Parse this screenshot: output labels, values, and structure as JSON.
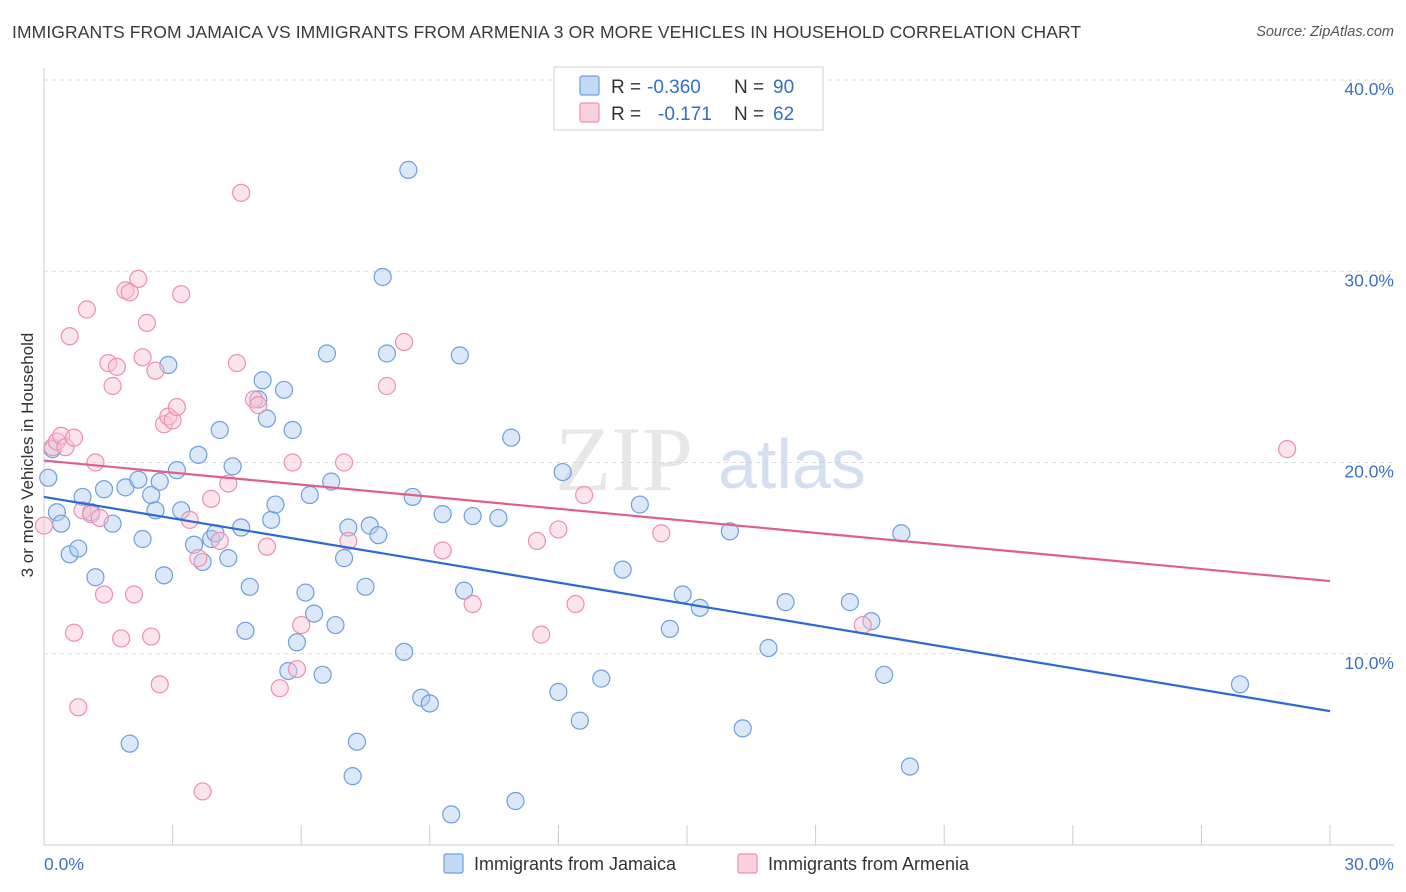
{
  "title": "IMMIGRANTS FROM JAMAICA VS IMMIGRANTS FROM ARMENIA 3 OR MORE VEHICLES IN HOUSEHOLD CORRELATION CHART",
  "source": "Source: ZipAtlas.com",
  "watermark": {
    "zip": "ZIP",
    "atlas": "atlas"
  },
  "chart_data": {
    "type": "scatter",
    "ylabel": "3 or more Vehicles in Household",
    "xlim": [
      0,
      30
    ],
    "ylim": [
      0,
      40
    ],
    "x_tick_labels": [
      {
        "value": 0,
        "label": "0.0%"
      },
      {
        "value": 30,
        "label": "30.0%"
      }
    ],
    "y_tick_labels": [
      {
        "value": 10,
        "label": "10.0%"
      },
      {
        "value": 20,
        "label": "20.0%"
      },
      {
        "value": 30,
        "label": "30.0%"
      },
      {
        "value": 40,
        "label": "40.0%"
      }
    ],
    "grid": "horizontal dashed",
    "legend_top": [
      {
        "r_label": "R =",
        "r_value": "-0.360",
        "n_label": "N =",
        "n_value": "90",
        "color": "#6f9fdc"
      },
      {
        "r_label": "R =",
        "r_value": "-0.171",
        "n_label": "N =",
        "n_value": "62",
        "color": "#ee8faf"
      }
    ],
    "series": [
      {
        "name": "Immigrants from Jamaica",
        "color": "#6f9fdc",
        "fill": "#aecbf0",
        "trend": {
          "x": [
            0,
            30
          ],
          "y": [
            18.2,
            7.0
          ],
          "color": "#2a6bd3"
        },
        "points": [
          [
            0.1,
            19.2
          ],
          [
            0.3,
            17.4
          ],
          [
            0.4,
            16.8
          ],
          [
            0.6,
            15.2
          ],
          [
            0.8,
            15.5
          ],
          [
            0.9,
            18.2
          ],
          [
            1.2,
            14.0
          ],
          [
            1.4,
            18.6
          ],
          [
            1.6,
            16.8
          ],
          [
            1.9,
            18.7
          ],
          [
            2.0,
            5.3
          ],
          [
            2.2,
            19.1
          ],
          [
            2.3,
            16.0
          ],
          [
            2.5,
            18.3
          ],
          [
            2.6,
            17.5
          ],
          [
            2.7,
            19.0
          ],
          [
            2.8,
            14.1
          ],
          [
            2.9,
            25.1
          ],
          [
            3.1,
            19.6
          ],
          [
            3.2,
            17.5
          ],
          [
            3.6,
            20.4
          ],
          [
            3.5,
            15.7
          ],
          [
            3.7,
            14.8
          ],
          [
            3.9,
            16.0
          ],
          [
            4.0,
            16.3
          ],
          [
            4.1,
            21.7
          ],
          [
            4.3,
            15.0
          ],
          [
            4.4,
            19.8
          ],
          [
            4.6,
            16.6
          ],
          [
            4.7,
            11.2
          ],
          [
            4.8,
            13.5
          ],
          [
            5.0,
            23.3
          ],
          [
            5.1,
            24.3
          ],
          [
            5.3,
            17.0
          ],
          [
            5.4,
            17.8
          ],
          [
            5.6,
            23.8
          ],
          [
            5.7,
            9.1
          ],
          [
            5.8,
            21.7
          ],
          [
            5.9,
            10.6
          ],
          [
            6.1,
            13.2
          ],
          [
            6.2,
            18.3
          ],
          [
            6.3,
            12.1
          ],
          [
            6.5,
            8.9
          ],
          [
            6.6,
            25.7
          ],
          [
            6.7,
            19.0
          ],
          [
            6.8,
            11.5
          ],
          [
            7.0,
            15.0
          ],
          [
            7.1,
            16.6
          ],
          [
            7.2,
            3.6
          ],
          [
            7.3,
            5.4
          ],
          [
            7.5,
            13.5
          ],
          [
            7.6,
            16.7
          ],
          [
            7.8,
            16.2
          ],
          [
            7.9,
            29.7
          ],
          [
            8.0,
            25.7
          ],
          [
            8.4,
            10.1
          ],
          [
            8.5,
            35.3
          ],
          [
            8.6,
            18.2
          ],
          [
            8.8,
            7.7
          ],
          [
            9.0,
            7.4
          ],
          [
            9.3,
            17.3
          ],
          [
            9.5,
            1.6
          ],
          [
            9.7,
            25.6
          ],
          [
            9.8,
            13.3
          ],
          [
            10.0,
            17.2
          ],
          [
            10.6,
            17.1
          ],
          [
            10.9,
            21.3
          ],
          [
            11.0,
            2.3
          ],
          [
            12.0,
            8.0
          ],
          [
            12.1,
            19.5
          ],
          [
            12.5,
            6.5
          ],
          [
            13.0,
            8.7
          ],
          [
            13.5,
            14.4
          ],
          [
            13.9,
            17.8
          ],
          [
            14.6,
            11.3
          ],
          [
            14.9,
            13.1
          ],
          [
            15.3,
            12.4
          ],
          [
            16.0,
            16.4
          ],
          [
            16.3,
            6.1
          ],
          [
            16.9,
            10.3
          ],
          [
            17.3,
            12.7
          ],
          [
            18.8,
            12.7
          ],
          [
            19.3,
            11.7
          ],
          [
            19.6,
            8.9
          ],
          [
            20.0,
            16.3
          ],
          [
            20.2,
            4.1
          ],
          [
            27.9,
            8.4
          ],
          [
            0.2,
            20.7
          ],
          [
            1.1,
            17.4
          ],
          [
            5.2,
            22.3
          ]
        ]
      },
      {
        "name": "Immigrants from Armenia",
        "color": "#ee8faf",
        "fill": "#f8c3d4",
        "trend": {
          "x": [
            0,
            30
          ],
          "y": [
            20.1,
            13.8
          ],
          "color": "#e05e8d"
        },
        "points": [
          [
            0.0,
            16.7
          ],
          [
            0.2,
            20.8
          ],
          [
            0.3,
            21.1
          ],
          [
            0.4,
            21.4
          ],
          [
            0.5,
            20.8
          ],
          [
            0.6,
            26.6
          ],
          [
            0.7,
            21.3
          ],
          [
            0.7,
            11.1
          ],
          [
            0.8,
            7.2
          ],
          [
            0.9,
            17.5
          ],
          [
            1.0,
            28.0
          ],
          [
            1.1,
            17.3
          ],
          [
            1.2,
            20.0
          ],
          [
            1.3,
            17.1
          ],
          [
            1.4,
            13.1
          ],
          [
            1.5,
            25.2
          ],
          [
            1.6,
            24.0
          ],
          [
            1.7,
            25.0
          ],
          [
            1.8,
            10.8
          ],
          [
            1.9,
            29.0
          ],
          [
            2.0,
            28.9
          ],
          [
            2.1,
            13.1
          ],
          [
            2.2,
            29.6
          ],
          [
            2.3,
            25.5
          ],
          [
            2.4,
            27.3
          ],
          [
            2.5,
            10.9
          ],
          [
            2.6,
            24.8
          ],
          [
            2.7,
            8.4
          ],
          [
            2.8,
            22.0
          ],
          [
            2.9,
            22.4
          ],
          [
            3.0,
            22.2
          ],
          [
            3.1,
            22.9
          ],
          [
            3.2,
            28.8
          ],
          [
            3.4,
            17.0
          ],
          [
            3.6,
            15.0
          ],
          [
            3.7,
            2.8
          ],
          [
            3.9,
            18.1
          ],
          [
            4.1,
            15.9
          ],
          [
            4.3,
            18.9
          ],
          [
            4.5,
            25.2
          ],
          [
            4.6,
            34.1
          ],
          [
            4.9,
            23.3
          ],
          [
            5.0,
            23.0
          ],
          [
            5.2,
            15.6
          ],
          [
            5.5,
            8.2
          ],
          [
            5.8,
            20.0
          ],
          [
            5.9,
            9.2
          ],
          [
            6.0,
            11.5
          ],
          [
            7.0,
            20.0
          ],
          [
            7.1,
            15.9
          ],
          [
            8.0,
            24.0
          ],
          [
            8.4,
            26.3
          ],
          [
            9.3,
            15.4
          ],
          [
            10.0,
            12.6
          ],
          [
            11.5,
            15.9
          ],
          [
            11.6,
            11.0
          ],
          [
            12.0,
            16.5
          ],
          [
            12.4,
            12.6
          ],
          [
            12.6,
            18.3
          ],
          [
            14.4,
            16.3
          ],
          [
            19.1,
            11.5
          ],
          [
            29.0,
            20.7
          ]
        ]
      }
    ]
  },
  "bottom_legend": [
    {
      "label": "Immigrants from Jamaica"
    },
    {
      "label": "Immigrants from Armenia"
    }
  ]
}
